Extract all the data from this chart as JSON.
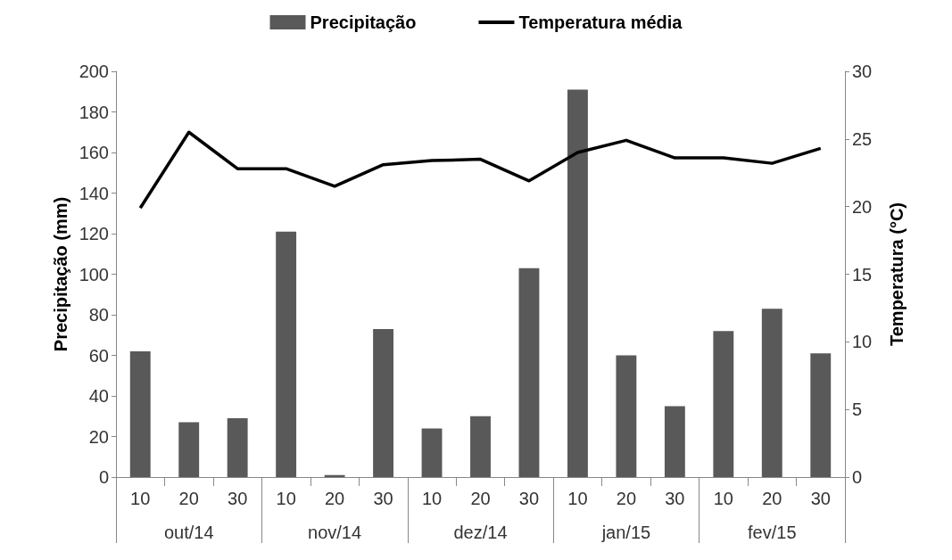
{
  "chart_data": {
    "type": "bar",
    "categories": [
      "10",
      "20",
      "30",
      "10",
      "20",
      "30",
      "10",
      "20",
      "30",
      "10",
      "20",
      "30",
      "10",
      "20",
      "30"
    ],
    "annotations": [
      "out/14",
      "nov/14",
      "dez/14",
      "jan/15",
      "fev/15"
    ],
    "ylabel": "Precipitação (mm)",
    "y2label": "Temperatura (°C)",
    "series": [
      {
        "name": "Precipitação",
        "color": "#595959",
        "values": [
          62,
          27,
          29,
          121,
          1,
          73,
          24,
          30,
          103,
          191,
          60,
          35,
          72,
          83,
          61
        ]
      },
      {
        "name": "Temperatura média",
        "type": "line",
        "axis": "y2",
        "color": "#000000",
        "marker": "none",
        "values": [
          19.9,
          25.5,
          22.8,
          22.8,
          21.5,
          23.1,
          23.4,
          23.5,
          21.9,
          24.0,
          24.9,
          23.6,
          23.6,
          23.2,
          24.3
        ]
      }
    ],
    "ylim": [
      0,
      200
    ],
    "yticks": [
      0,
      20,
      40,
      60,
      80,
      100,
      120,
      140,
      160,
      180,
      200
    ],
    "y2lim": [
      0,
      30
    ],
    "y2ticks": [
      0,
      5,
      10,
      15,
      20,
      25,
      30
    ],
    "grid": false,
    "legend": "top"
  }
}
